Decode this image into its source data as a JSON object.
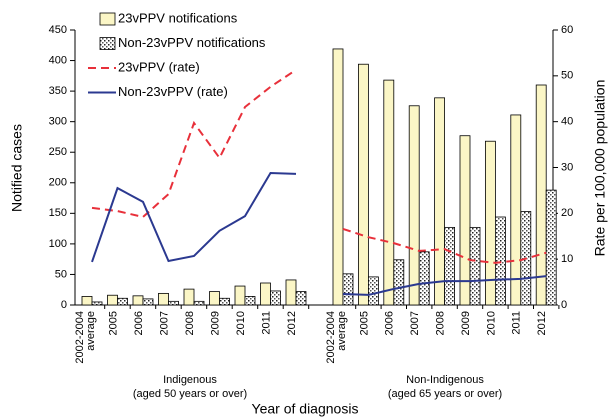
{
  "chart_data": {
    "type": "bar",
    "xlabel": "Year of diagnosis",
    "ylabel": "Notified cases",
    "y2label": "Rate per 100,000 population",
    "ylim": [
      0,
      450
    ],
    "yticks": [
      0,
      50,
      100,
      150,
      200,
      250,
      300,
      350,
      400,
      450
    ],
    "y2lim": [
      0,
      60
    ],
    "y2ticks": [
      0,
      10,
      20,
      30,
      40,
      50,
      60
    ],
    "panels": [
      {
        "label": "Indigenous",
        "sublabel": "(aged 50 years or over)",
        "categories": [
          "2002-2004 average",
          "2005",
          "2006",
          "2007",
          "2008",
          "2009",
          "2010",
          "2011",
          "2012"
        ],
        "series": [
          {
            "name": "23vPPV notifications",
            "type": "bar",
            "color": "#fbf6c6",
            "values": [
              14,
              16,
              15,
              19,
              26,
              22,
              31,
              36,
              41
            ]
          },
          {
            "name": "Non-23vPPV notifications",
            "type": "bar",
            "color": "hatch",
            "values": [
              5,
              11,
              10,
              6,
              6,
              11,
              14,
              23,
              22
            ]
          },
          {
            "name": "23vPPV (rate)",
            "type": "line",
            "axis": "y2",
            "color": "#e8303a",
            "dashed": true,
            "values": [
              21.2,
              20.5,
              19.2,
              24.2,
              39.7,
              32.1,
              43.2,
              47.6,
              51.3
            ]
          },
          {
            "name": "Non-23vPPV (rate)",
            "type": "line",
            "axis": "y2",
            "color": "#2b3990",
            "values": [
              9.4,
              25.5,
              22.5,
              9.6,
              10.7,
              16.2,
              19.4,
              28.8,
              28.6
            ]
          }
        ]
      },
      {
        "label": "Non-Indigenous",
        "sublabel": "(aged 65 years or over)",
        "categories": [
          "2002-2004 average",
          "2005",
          "2006",
          "2007",
          "2008",
          "2009",
          "2010",
          "2011",
          "2012"
        ],
        "series": [
          {
            "name": "23vPPV notifications",
            "type": "bar",
            "color": "#fbf6c6",
            "values": [
              419,
              394,
              368,
              326,
              339,
              277,
              268,
              311,
              360
            ]
          },
          {
            "name": "Non-23vPPV notifications",
            "type": "bar",
            "color": "hatch",
            "values": [
              51,
              46,
              74,
              87,
              127,
              127,
              144,
              153,
              188
            ]
          },
          {
            "name": "23vPPV (rate)",
            "type": "line",
            "axis": "y2",
            "color": "#e8303a",
            "dashed": true,
            "values": [
              16.6,
              14.8,
              13.5,
              11.8,
              12.2,
              9.8,
              9.2,
              9.8,
              11.4
            ]
          },
          {
            "name": "Non-23vPPV (rate)",
            "type": "line",
            "axis": "y2",
            "color": "#2b3990",
            "values": [
              2.4,
              2.2,
              3.5,
              4.6,
              5.2,
              5.2,
              5.5,
              5.7,
              6.3
            ]
          }
        ]
      }
    ]
  }
}
